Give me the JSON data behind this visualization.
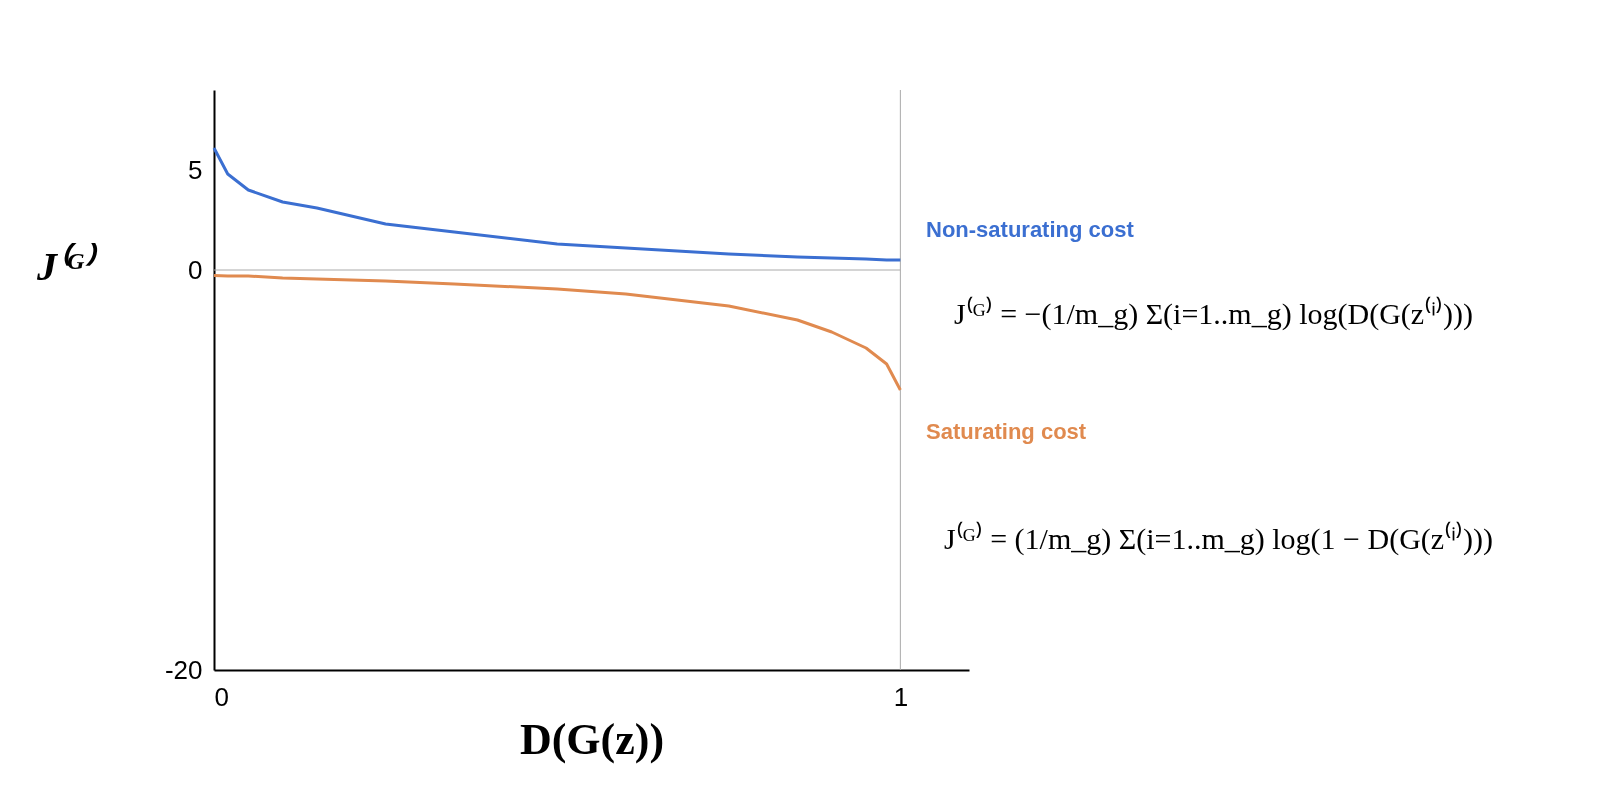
{
  "chart_data": {
    "type": "line",
    "xlabel": "D(G(z))",
    "ylabel": "J⁽ᴳ⁾",
    "x": [
      0,
      0.02,
      0.05,
      0.1,
      0.15,
      0.25,
      0.35,
      0.5,
      0.6,
      0.75,
      0.85,
      0.9,
      0.95,
      0.98,
      1.0
    ],
    "series": [
      {
        "name": "Non-saturating cost",
        "color": "#3b6fd1",
        "values": [
          6.1,
          4.8,
          4.0,
          3.4,
          3.1,
          2.3,
          1.9,
          1.3,
          1.1,
          0.8,
          0.65,
          0.6,
          0.55,
          0.5,
          0.5
        ]
      },
      {
        "name": "Saturating cost",
        "color": "#e08a4f",
        "values": [
          -0.28,
          -0.3,
          -0.3,
          -0.4,
          -0.45,
          -0.55,
          -0.7,
          -0.95,
          -1.2,
          -1.8,
          -2.5,
          -3.1,
          -3.9,
          -4.7,
          -6.0
        ]
      }
    ],
    "annotations": [
      "J⁽ᴳ⁾ = −(1/m_g) Σ(i=1..m_g) log(D(G(z⁽ⁱ⁾)))",
      "J⁽ᴳ⁾ = (1/m_g) Σ(i=1..m_g) log(1 − D(G(z⁽ⁱ⁾)))"
    ],
    "xlim": [
      0,
      1.1
    ],
    "ylim": [
      -20,
      9
    ],
    "xticks": [
      0,
      1
    ],
    "yticks": [
      -20,
      0,
      5
    ],
    "ref_lines": [
      {
        "axis": "y",
        "value": 0,
        "color": "#aaaaaa"
      },
      {
        "axis": "x",
        "value": 1,
        "color": "#aaaaaa"
      }
    ],
    "marker": "none",
    "line_style": "solid"
  }
}
